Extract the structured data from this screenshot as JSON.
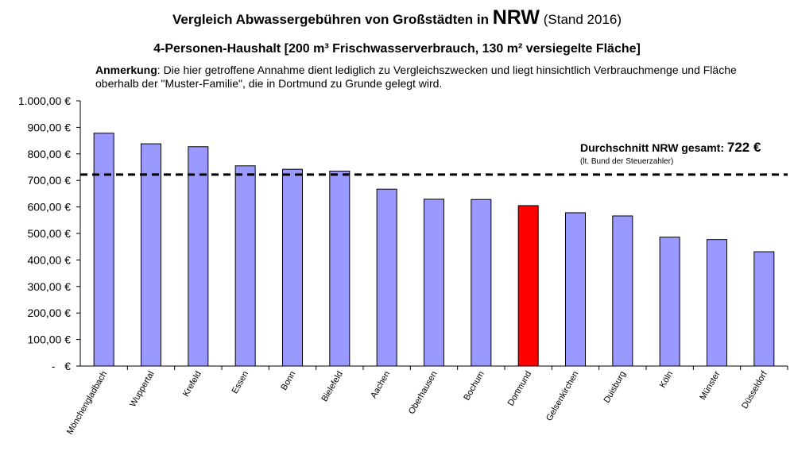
{
  "chart_data": {
    "type": "bar",
    "title_prefix": "Vergleich Abwassergebühren von Großstädten in",
    "title_highlight": "NRW",
    "title_suffix": "(Stand 2016)",
    "subtitle": "4-Personen-Haushalt [200 m³ Frischwasserverbrauch, 130 m² versiegelte Fläche]",
    "note_label": "Anmerkung",
    "note_text": ": Die hier getroffene Annahme dient lediglich zu Vergleichszwecken und liegt hinsichtlich Verbrauchmenge und Fläche oberhalb der \"Muster-Familie\", die in Dortmund zu Grunde gelegt wird.",
    "categories": [
      "Mönchengladbach",
      "Wuppertal",
      "Krefeld",
      "Essen",
      "Bonn",
      "Bielefeld",
      "Aachen",
      "Oberhausen",
      "Bochum",
      "Dortmund",
      "Gelsenkirchen",
      "Duisburg",
      "Köln",
      "Münster",
      "Düsseldorf"
    ],
    "values": [
      878,
      838,
      827,
      755,
      742,
      735,
      667,
      629,
      628,
      605,
      578,
      566,
      486,
      477,
      431
    ],
    "highlight_index": 9,
    "bar_color": "#9999ff",
    "highlight_color": "#ff0000",
    "ylim": [
      0,
      1000
    ],
    "yticks": [
      0,
      100,
      200,
      300,
      400,
      500,
      600,
      700,
      800,
      900,
      1000
    ],
    "ytick_labels": [
      "-   €",
      "100,00 €",
      "200,00 €",
      "300,00 €",
      "400,00 €",
      "500,00 €",
      "600,00 €",
      "700,00 €",
      "800,00 €",
      "900,00 €",
      "1.000,00 €"
    ],
    "average": {
      "value": 722,
      "label": "Durchschnitt NRW gesamt: ",
      "value_label": "722 €",
      "source": "(lt. Bund der Steuerzahler)"
    },
    "grid": false
  }
}
